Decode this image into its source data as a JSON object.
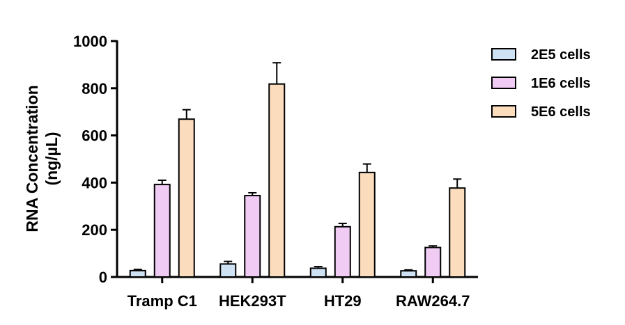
{
  "chart_data": {
    "type": "bar",
    "title": "",
    "xlabel": "",
    "ylabel_line1": "RNA Concentration",
    "ylabel_line2": "(ng/µL)",
    "ylim": [
      0,
      1000
    ],
    "yticks": [
      0,
      200,
      400,
      600,
      800,
      1000
    ],
    "grid": false,
    "legend_position": "top-right",
    "categories": [
      "Tramp C1",
      "HEK293T",
      "HT29",
      "RAW264.7"
    ],
    "series": [
      {
        "name": "2E5 cells",
        "color": "#CFE2F3",
        "values": [
          27,
          55,
          37,
          26
        ],
        "errors": [
          5,
          11,
          7,
          4
        ]
      },
      {
        "name": "1E6 cells",
        "color": "#F0CCF5",
        "values": [
          392,
          345,
          213,
          125
        ],
        "errors": [
          18,
          12,
          14,
          7
        ]
      },
      {
        "name": "5E6 cells",
        "color": "#FBDDBE",
        "values": [
          669,
          818,
          443,
          377
        ],
        "errors": [
          40,
          90,
          36,
          38
        ]
      }
    ]
  }
}
